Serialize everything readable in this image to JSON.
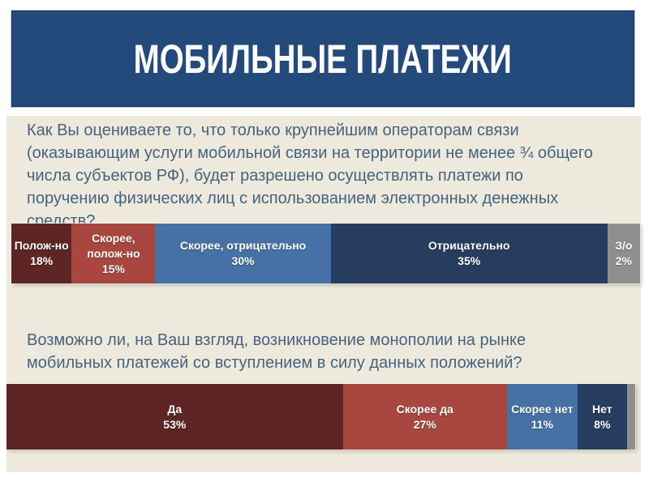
{
  "slide": {
    "title": "МОБИЛЬНЫЕ ПЛАТЕЖИ",
    "title_box_color": "#24497b",
    "content_background": "#edeadd",
    "question_text_color": "#46627e"
  },
  "chart_data": [
    {
      "type": "bar",
      "orientation": "horizontal-stacked",
      "question": "Как Вы оцениваете то, что только крупнейшим операторам связи (оказывающим услуги мобильной связи на территории не менее ¾ общего числа субъектов РФ), будет разрешено осуществлять платежи по поручению физических лиц с использованием электронных денежных средств?",
      "categories": [
        "Полож-но",
        "Скорее, полож-но",
        "Скорее, отрицательно",
        "Отрицательно",
        "З/о"
      ],
      "values": [
        18,
        15,
        30,
        35,
        2
      ],
      "unit": "%",
      "legend_position": "none",
      "grid": false,
      "segments": [
        {
          "label": "Полож-но",
          "value": 18,
          "value_label": "18%",
          "color": "#5e2525",
          "display_width_pct": 9.6
        },
        {
          "label": "Скорее, полож-но",
          "value": 15,
          "value_label": "15%",
          "color": "#a9463f",
          "display_width_pct": 13.3
        },
        {
          "label": "Скорее, отрицательно",
          "value": 30,
          "value_label": "30%",
          "color": "#4571a6",
          "display_width_pct": 27.9
        },
        {
          "label": "Отрицательно",
          "value": 35,
          "value_label": "35%",
          "color": "#263d5f",
          "display_width_pct": 44.0
        },
        {
          "label": "З/о",
          "value": 2,
          "value_label": "2%",
          "color": "#8f8f8f",
          "display_width_pct": 5.2
        }
      ]
    },
    {
      "type": "bar",
      "orientation": "horizontal-stacked",
      "question": "Возможно ли, на Ваш взгляд, возникновение монополии на рынке мобильных платежей со вступлением в силу данных положений?",
      "categories": [
        "Да",
        "Скорее да",
        "Скорее нет",
        "Нет"
      ],
      "values": [
        53,
        27,
        11,
        8
      ],
      "unit": "%",
      "legend_position": "none",
      "grid": false,
      "segments": [
        {
          "label": "Да",
          "value": 53,
          "value_label": "53%",
          "color": "#5e2525",
          "display_width_pct": 53.5
        },
        {
          "label": "Скорее да",
          "value": 27,
          "value_label": "27%",
          "color": "#a9463f",
          "display_width_pct": 26.1
        },
        {
          "label": "Скорее нет",
          "value": 11,
          "value_label": "11%",
          "color": "#4571a6",
          "display_width_pct": 11.2
        },
        {
          "label": "Нет",
          "value": 8,
          "value_label": "8%",
          "color": "#263d5f",
          "display_width_pct": 7.9
        },
        {
          "label": "",
          "value": null,
          "value_label": "",
          "color": "#8f8f8f",
          "display_width_pct": 1.3
        }
      ]
    }
  ]
}
